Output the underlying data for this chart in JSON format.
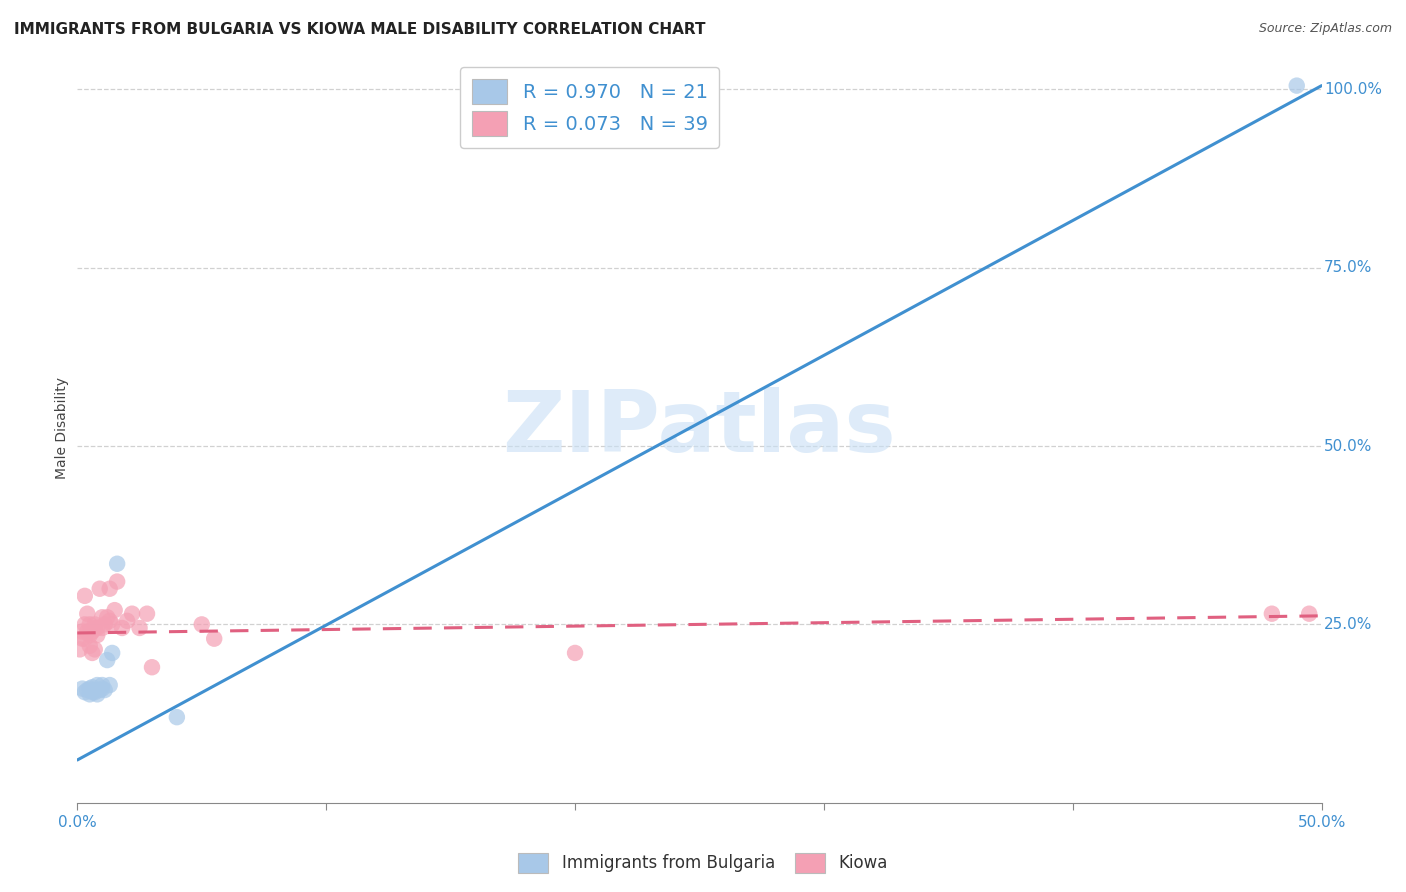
{
  "title": "IMMIGRANTS FROM BULGARIA VS KIOWA MALE DISABILITY CORRELATION CHART",
  "source": "Source: ZipAtlas.com",
  "ylabel": "Male Disability",
  "xlim": [
    0.0,
    0.5
  ],
  "ylim": [
    0.0,
    1.05
  ],
  "xtick_vals": [
    0.0,
    0.1,
    0.2,
    0.3,
    0.4,
    0.5
  ],
  "xtick_labels_show": [
    "0.0%",
    "",
    "",
    "",
    "",
    "50.0%"
  ],
  "ytick_vals_right": [
    0.25,
    0.5,
    0.75,
    1.0
  ],
  "ytick_labels_right": [
    "25.0%",
    "50.0%",
    "75.0%",
    "100.0%"
  ],
  "legend_entry1_r": "R = 0.970",
  "legend_entry1_n": "N = 21",
  "legend_entry2_r": "R = 0.073",
  "legend_entry2_n": "N = 39",
  "color_blue": "#a8c8e8",
  "color_pink": "#f4a0b4",
  "line_blue": "#4090d0",
  "line_pink": "#e06080",
  "text_blue": "#4090d0",
  "watermark_color": "#c8dff5",
  "background": "#ffffff",
  "grid_color": "#cccccc",
  "blue_scatter_x": [
    0.002,
    0.003,
    0.004,
    0.005,
    0.005,
    0.006,
    0.006,
    0.007,
    0.007,
    0.008,
    0.008,
    0.009,
    0.01,
    0.01,
    0.011,
    0.012,
    0.013,
    0.014,
    0.016,
    0.04,
    0.49
  ],
  "blue_scatter_y": [
    0.16,
    0.155,
    0.158,
    0.152,
    0.16,
    0.155,
    0.162,
    0.155,
    0.158,
    0.165,
    0.152,
    0.158,
    0.16,
    0.165,
    0.158,
    0.2,
    0.165,
    0.21,
    0.335,
    0.12,
    1.005
  ],
  "pink_scatter_x": [
    0.001,
    0.002,
    0.002,
    0.003,
    0.003,
    0.003,
    0.004,
    0.004,
    0.005,
    0.005,
    0.005,
    0.006,
    0.006,
    0.007,
    0.007,
    0.007,
    0.008,
    0.008,
    0.009,
    0.01,
    0.01,
    0.011,
    0.012,
    0.013,
    0.013,
    0.014,
    0.015,
    0.016,
    0.018,
    0.02,
    0.022,
    0.025,
    0.028,
    0.03,
    0.05,
    0.055,
    0.2,
    0.48,
    0.495
  ],
  "pink_scatter_y": [
    0.215,
    0.23,
    0.24,
    0.23,
    0.25,
    0.29,
    0.24,
    0.265,
    0.22,
    0.235,
    0.25,
    0.21,
    0.24,
    0.245,
    0.215,
    0.25,
    0.235,
    0.245,
    0.3,
    0.245,
    0.26,
    0.25,
    0.26,
    0.255,
    0.3,
    0.25,
    0.27,
    0.31,
    0.245,
    0.255,
    0.265,
    0.245,
    0.265,
    0.19,
    0.25,
    0.23,
    0.21,
    0.265,
    0.265
  ],
  "blue_line_x": [
    0.0,
    0.5
  ],
  "blue_line_y": [
    0.06,
    1.005
  ],
  "pink_line_x": [
    0.0,
    0.5
  ],
  "pink_line_y": [
    0.238,
    0.262
  ],
  "title_fontsize": 11,
  "axis_label_fontsize": 10,
  "tick_fontsize": 11,
  "legend_fontsize": 14
}
